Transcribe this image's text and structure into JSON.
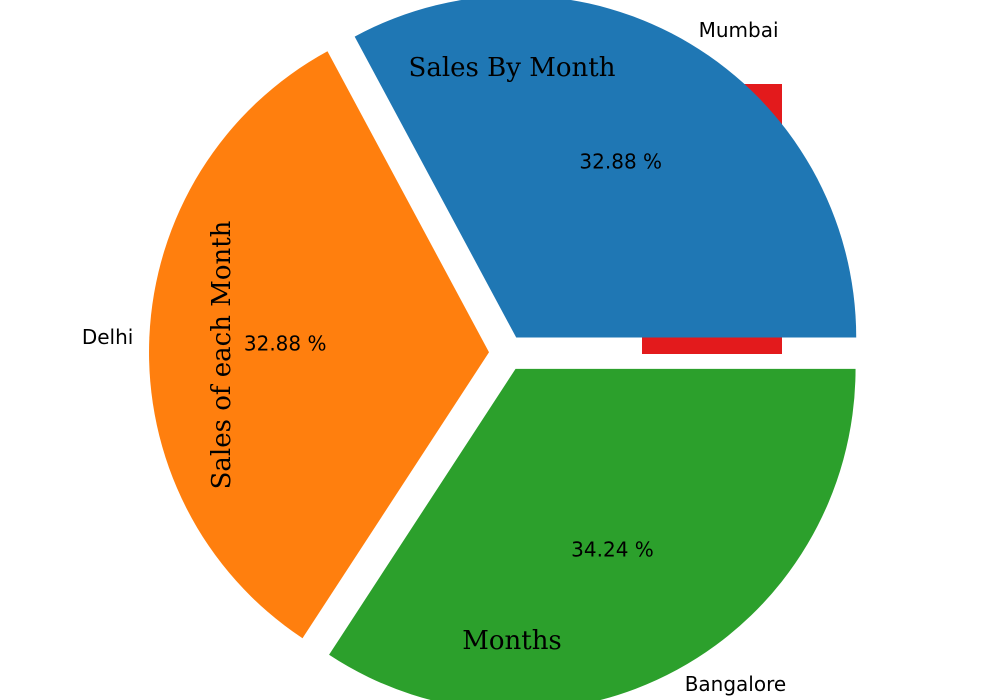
{
  "chart_data": {
    "type": "pie",
    "title": "Sales By Month",
    "xlabel": "Months",
    "ylabel": "Sales of each Month",
    "slices": [
      {
        "label": "Mumbai",
        "percent": 32.88,
        "percent_text": "32.88 %",
        "color": "#1f77b4",
        "exploded": true
      },
      {
        "label": "Delhi",
        "percent": 32.88,
        "percent_text": "32.88 %",
        "color": "#ff7f0e",
        "exploded": true
      },
      {
        "label": "Bangalore",
        "percent": 34.24,
        "percent_text": "34.24 %",
        "color": "#2ca02c",
        "exploded": true
      }
    ],
    "start_angle_deg": 0,
    "direction": "counterclockwise",
    "background_artifact_color": "#e31a1c"
  }
}
